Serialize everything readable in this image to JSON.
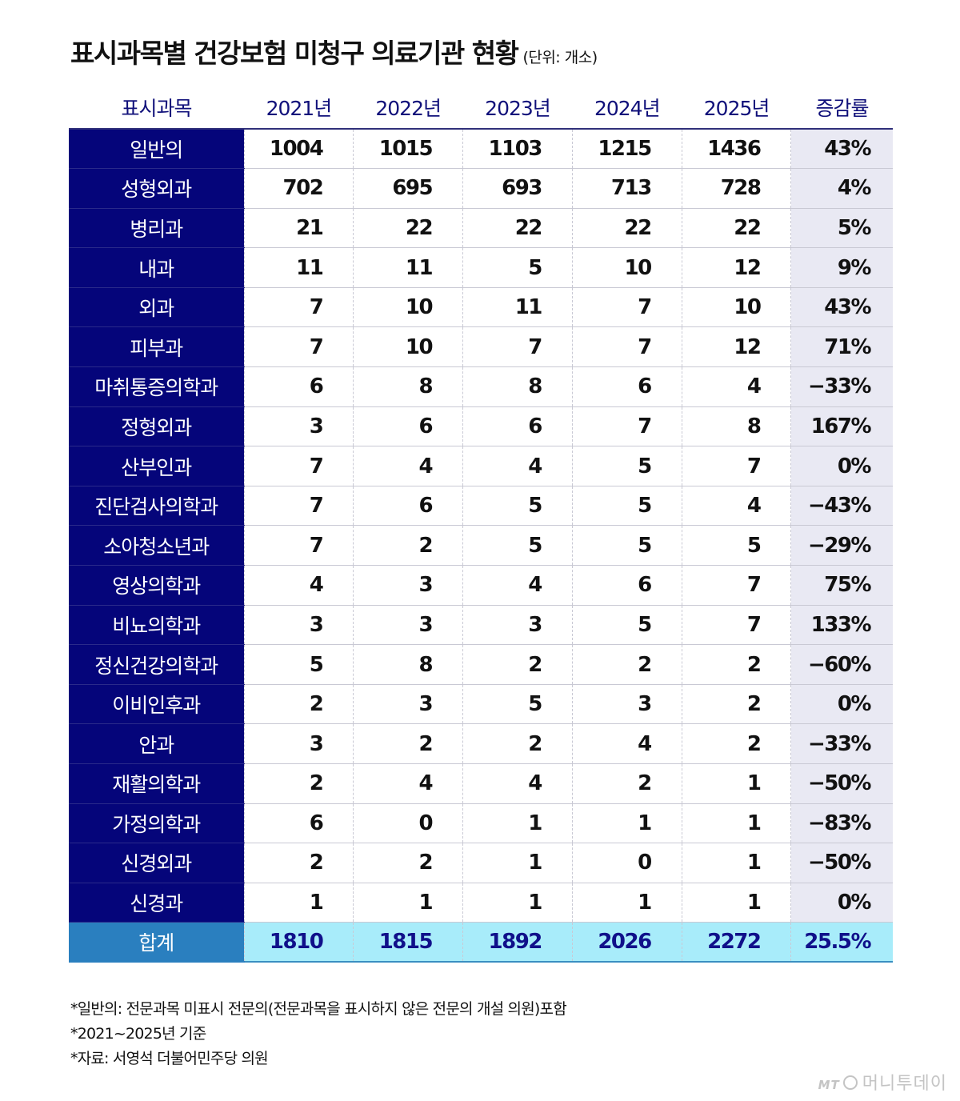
{
  "title": "표시과목별 건강보험 미청구 의료기관 현황",
  "unit": "(단위: 개소)",
  "columns": [
    "표시과목",
    "2021년",
    "2022년",
    "2023년",
    "2024년",
    "2025년",
    "증감률"
  ],
  "rows": [
    {
      "subject": "일반의",
      "values": [
        "1004",
        "1015",
        "1103",
        "1215",
        "1436"
      ],
      "rate": "43%"
    },
    {
      "subject": "성형외과",
      "values": [
        "702",
        "695",
        "693",
        "713",
        "728"
      ],
      "rate": "4%"
    },
    {
      "subject": "병리과",
      "values": [
        "21",
        "22",
        "22",
        "22",
        "22"
      ],
      "rate": "5%"
    },
    {
      "subject": "내과",
      "values": [
        "11",
        "11",
        "5",
        "10",
        "12"
      ],
      "rate": "9%"
    },
    {
      "subject": "외과",
      "values": [
        "7",
        "10",
        "11",
        "7",
        "10"
      ],
      "rate": "43%"
    },
    {
      "subject": "피부과",
      "values": [
        "7",
        "10",
        "7",
        "7",
        "12"
      ],
      "rate": "71%"
    },
    {
      "subject": "마취통증의학과",
      "values": [
        "6",
        "8",
        "8",
        "6",
        "4"
      ],
      "rate": "−33%"
    },
    {
      "subject": "정형외과",
      "values": [
        "3",
        "6",
        "6",
        "7",
        "8"
      ],
      "rate": "167%"
    },
    {
      "subject": "산부인과",
      "values": [
        "7",
        "4",
        "4",
        "5",
        "7"
      ],
      "rate": "0%"
    },
    {
      "subject": "진단검사의학과",
      "values": [
        "7",
        "6",
        "5",
        "5",
        "4"
      ],
      "rate": "−43%"
    },
    {
      "subject": "소아청소년과",
      "values": [
        "7",
        "2",
        "5",
        "5",
        "5"
      ],
      "rate": "−29%"
    },
    {
      "subject": "영상의학과",
      "values": [
        "4",
        "3",
        "4",
        "6",
        "7"
      ],
      "rate": "75%"
    },
    {
      "subject": "비뇨의학과",
      "values": [
        "3",
        "3",
        "3",
        "5",
        "7"
      ],
      "rate": "133%"
    },
    {
      "subject": "정신건강의학과",
      "values": [
        "5",
        "8",
        "2",
        "2",
        "2"
      ],
      "rate": "−60%"
    },
    {
      "subject": "이비인후과",
      "values": [
        "2",
        "3",
        "5",
        "3",
        "2"
      ],
      "rate": "0%"
    },
    {
      "subject": "안과",
      "values": [
        "3",
        "2",
        "2",
        "4",
        "2"
      ],
      "rate": "−33%"
    },
    {
      "subject": "재활의학과",
      "values": [
        "2",
        "4",
        "4",
        "2",
        "1"
      ],
      "rate": "−50%"
    },
    {
      "subject": "가정의학과",
      "values": [
        "6",
        "0",
        "1",
        "1",
        "1"
      ],
      "rate": "−83%"
    },
    {
      "subject": "신경외과",
      "values": [
        "2",
        "2",
        "1",
        "0",
        "1"
      ],
      "rate": "−50%"
    },
    {
      "subject": "신경과",
      "values": [
        "1",
        "1",
        "1",
        "1",
        "1"
      ],
      "rate": "0%"
    }
  ],
  "total": {
    "subject": "합계",
    "values": [
      "1810",
      "1815",
      "1892",
      "2026",
      "2272"
    ],
    "rate": "25.5%"
  },
  "notes": [
    "*일반의: 전문과목 미표시 전문의(전문과목을 표시하지 않은 전문의 개설 의원)포함",
    "*2021~2025년 기준",
    "*자료: 서영석 더불어민주당 의원"
  ],
  "brand": {
    "mt": "MT",
    "name": "머니투데이"
  },
  "colors": {
    "subject_bg": "#05057a",
    "header_text": "#10107a",
    "rate_bg": "#e9e9f3",
    "total_bg": "#a8ecfa",
    "total_subject_bg": "#2a7fbf"
  }
}
